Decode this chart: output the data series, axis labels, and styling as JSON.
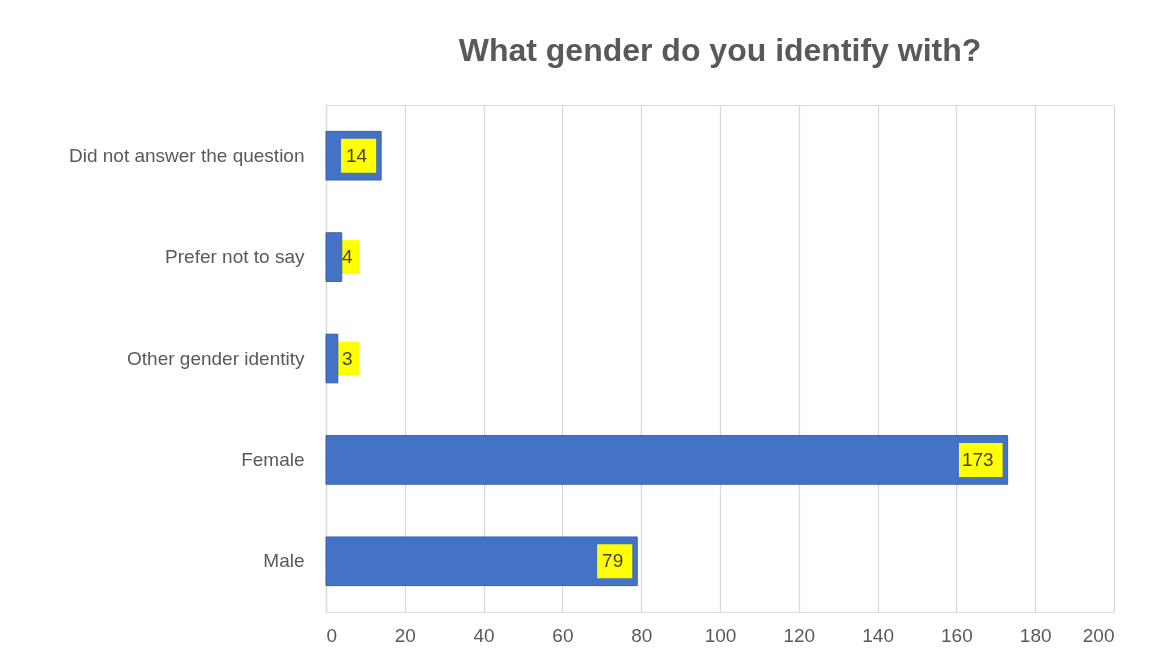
{
  "chart_data": {
    "type": "bar",
    "title": "What gender do you identify with?",
    "orientation": "horizontal",
    "categories": [
      "Did not answer the question",
      "Prefer not to say",
      "Other gender identity",
      "Female",
      "Male"
    ],
    "values": [
      14,
      4,
      3,
      173,
      79
    ],
    "color": "#4472c4",
    "xlim": [
      0,
      200
    ],
    "xticks": [
      0,
      20,
      40,
      60,
      80,
      100,
      120,
      140,
      160,
      180,
      200
    ],
    "grid": "x",
    "data_labels": true
  }
}
